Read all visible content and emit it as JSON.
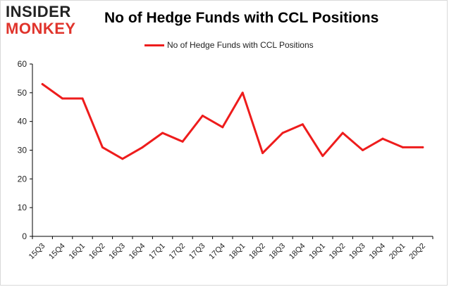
{
  "logo": {
    "line1": "INSIDER",
    "line2": "MONKEY"
  },
  "colors": {
    "series": "#ee1c1c",
    "grid": "#d9d9d9",
    "axis": "#000000",
    "logo_red": "#e0342c"
  },
  "chart_data": {
    "type": "line",
    "title": "No of Hedge Funds with CCL Positions",
    "xlabel": "",
    "ylabel": "",
    "categories": [
      "15Q3",
      "15Q4",
      "16Q1",
      "16Q2",
      "16Q3",
      "16Q4",
      "17Q1",
      "17Q2",
      "17Q3",
      "17Q4",
      "18Q1",
      "18Q2",
      "18Q3",
      "18Q4",
      "19Q1",
      "19Q2",
      "19Q3",
      "19Q4",
      "20Q1",
      "20Q2"
    ],
    "series": [
      {
        "name": "No of Hedge Funds with CCL Positions",
        "values": [
          53,
          48,
          48,
          31,
          27,
          31,
          36,
          33,
          42,
          38,
          50,
          29,
          36,
          39,
          28,
          36,
          30,
          34,
          31,
          31
        ]
      }
    ],
    "ylim": [
      0,
      60
    ],
    "yticks": [
      0,
      10,
      20,
      30,
      40,
      50,
      60
    ],
    "grid": false,
    "legend": "top-center"
  }
}
